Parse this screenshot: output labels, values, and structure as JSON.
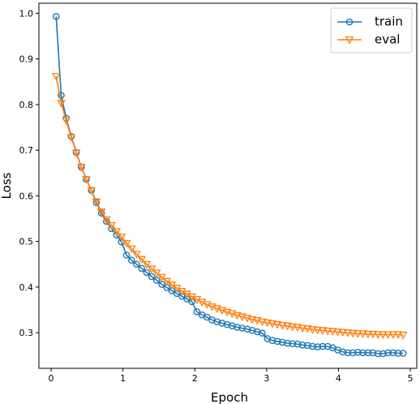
{
  "chart_data": {
    "type": "line",
    "xlabel": "Epoch",
    "ylabel": "Loss",
    "xlim": [
      -0.17,
      5.09
    ],
    "ylim": [
      0.222,
      1.022
    ],
    "xticks": [
      0,
      1,
      2,
      3,
      4,
      5
    ],
    "yticks": [
      0.3,
      0.4,
      0.5,
      0.6,
      0.7,
      0.8,
      0.9,
      1.0
    ],
    "xtick_labels": [
      "0",
      "1",
      "2",
      "3",
      "4",
      "5"
    ],
    "ytick_labels": [
      "0.3",
      "0.4",
      "0.5",
      "0.6",
      "0.7",
      "0.8",
      "0.9",
      "1.0"
    ],
    "legend_position": "top-right",
    "grid": false,
    "series": [
      {
        "name": "train",
        "color": "#1f77b4",
        "marker": "circle",
        "x": [
          0.07,
          0.14,
          0.21,
          0.28,
          0.35,
          0.42,
          0.49,
          0.56,
          0.63,
          0.7,
          0.77,
          0.84,
          0.91,
          0.98,
          1.05,
          1.12,
          1.19,
          1.26,
          1.33,
          1.4,
          1.47,
          1.54,
          1.61,
          1.68,
          1.75,
          1.82,
          1.89,
          1.96,
          2.03,
          2.1,
          2.17,
          2.24,
          2.31,
          2.38,
          2.45,
          2.52,
          2.59,
          2.66,
          2.73,
          2.8,
          2.87,
          2.94,
          3.01,
          3.08,
          3.15,
          3.22,
          3.29,
          3.36,
          3.43,
          3.5,
          3.57,
          3.64,
          3.71,
          3.78,
          3.85,
          3.92,
          3.99,
          4.06,
          4.13,
          4.2,
          4.27,
          4.34,
          4.41,
          4.48,
          4.55,
          4.62,
          4.69,
          4.76,
          4.83,
          4.9
        ],
        "y": [
          0.993,
          0.82,
          0.77,
          0.73,
          0.695,
          0.663,
          0.636,
          0.612,
          0.585,
          0.562,
          0.544,
          0.528,
          0.514,
          0.499,
          0.47,
          0.459,
          0.45,
          0.441,
          0.432,
          0.423,
          0.415,
          0.406,
          0.399,
          0.392,
          0.386,
          0.38,
          0.374,
          0.368,
          0.346,
          0.339,
          0.334,
          0.328,
          0.324,
          0.321,
          0.318,
          0.315,
          0.312,
          0.31,
          0.308,
          0.305,
          0.302,
          0.299,
          0.287,
          0.283,
          0.281,
          0.279,
          0.277,
          0.276,
          0.275,
          0.273,
          0.272,
          0.27,
          0.269,
          0.27,
          0.27,
          0.267,
          0.262,
          0.258,
          0.256,
          0.256,
          0.257,
          0.256,
          0.256,
          0.256,
          0.254,
          0.254,
          0.256,
          0.256,
          0.255,
          0.255
        ]
      },
      {
        "name": "eval",
        "color": "#ff7f0e",
        "marker": "triangle-down",
        "x": [
          0.07,
          0.14,
          0.21,
          0.28,
          0.35,
          0.42,
          0.49,
          0.56,
          0.63,
          0.7,
          0.77,
          0.84,
          0.91,
          0.98,
          1.05,
          1.12,
          1.19,
          1.26,
          1.33,
          1.4,
          1.47,
          1.54,
          1.61,
          1.68,
          1.75,
          1.82,
          1.89,
          1.96,
          2.03,
          2.1,
          2.17,
          2.24,
          2.31,
          2.38,
          2.45,
          2.52,
          2.59,
          2.66,
          2.73,
          2.8,
          2.87,
          2.94,
          3.01,
          3.08,
          3.15,
          3.22,
          3.29,
          3.36,
          3.43,
          3.5,
          3.57,
          3.64,
          3.71,
          3.78,
          3.85,
          3.92,
          3.99,
          4.06,
          4.13,
          4.2,
          4.27,
          4.34,
          4.41,
          4.48,
          4.55,
          4.62,
          4.69,
          4.76,
          4.83,
          4.9
        ],
        "y": [
          0.862,
          0.803,
          0.765,
          0.728,
          0.694,
          0.663,
          0.636,
          0.612,
          0.587,
          0.565,
          0.548,
          0.535,
          0.522,
          0.51,
          0.496,
          0.484,
          0.472,
          0.461,
          0.45,
          0.44,
          0.431,
          0.422,
          0.413,
          0.405,
          0.398,
          0.391,
          0.385,
          0.379,
          0.373,
          0.367,
          0.362,
          0.357,
          0.353,
          0.349,
          0.345,
          0.342,
          0.338,
          0.335,
          0.332,
          0.329,
          0.327,
          0.324,
          0.322,
          0.32,
          0.318,
          0.316,
          0.315,
          0.313,
          0.312,
          0.31,
          0.309,
          0.307,
          0.306,
          0.305,
          0.304,
          0.303,
          0.302,
          0.301,
          0.3,
          0.299,
          0.298,
          0.298,
          0.297,
          0.297,
          0.296,
          0.296,
          0.296,
          0.296,
          0.296,
          0.295
        ]
      }
    ]
  }
}
